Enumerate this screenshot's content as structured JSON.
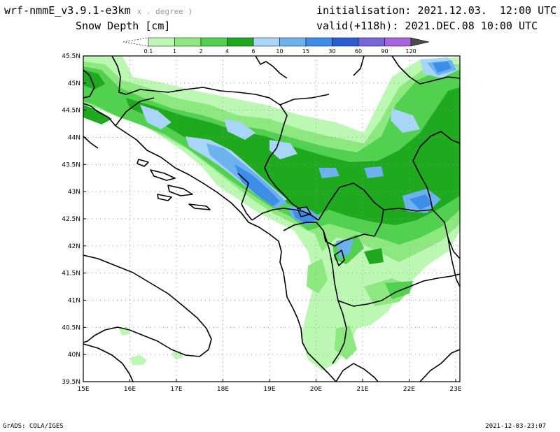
{
  "header": {
    "model": "wrf-nmmE_v3.9.1-e3km",
    "model_sub": "x . degree )",
    "variable": "Snow Depth [cm]",
    "init": "initialisation: 2021.12.03.  12:00 UTC",
    "valid": "valid(+118h): 2021.DEC.08 10:00 UTC"
  },
  "legend": {
    "ticks": [
      "0.1",
      "1",
      "2",
      "4",
      "6",
      "10",
      "15",
      "30",
      "60",
      "90",
      "120"
    ],
    "colors": [
      "#bdf7b4",
      "#8de880",
      "#52d050",
      "#1fa91f",
      "#a9d6f8",
      "#6bb2ef",
      "#3d8ee8",
      "#2a5cd0",
      "#7667d6",
      "#a663db",
      "#4a4a4a"
    ]
  },
  "map": {
    "lat_labels": [
      "45.5N",
      "45N",
      "44.5N",
      "44N",
      "43.5N",
      "43N",
      "42.5N",
      "42N",
      "41.5N",
      "41N",
      "40.5N",
      "40N",
      "39.5N"
    ],
    "lon_labels": [
      "15E",
      "16E",
      "17E",
      "18E",
      "19E",
      "20E",
      "21E",
      "22E",
      "23E"
    ]
  },
  "footer": {
    "left": "GrADS: COLA/IGES",
    "right": "2021-12-03-23:07"
  }
}
